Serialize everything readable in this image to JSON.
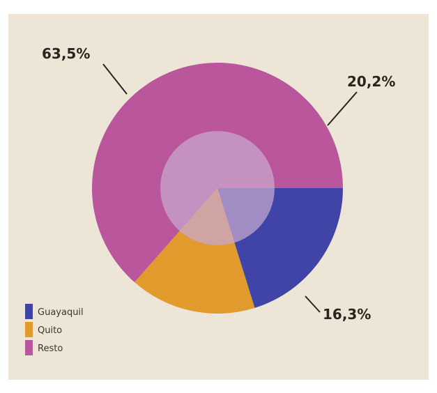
{
  "chart_data": {
    "type": "pie",
    "variant": "donut",
    "title": "",
    "categories": [
      "Guayaquil",
      "Quito",
      "Resto"
    ],
    "values": [
      20.2,
      16.3,
      63.5
    ],
    "labels": [
      "20,2%",
      "16,3%",
      "63,5%"
    ],
    "unit": "%",
    "start_angle_deg": 0,
    "direction": "clockwise",
    "colors": [
      "#3f44a6",
      "#e19b2c",
      "#b9569c"
    ],
    "center_disc_color": "#c9a7d0",
    "background_color": "#ede6d6",
    "legend": {
      "position": "bottom-left",
      "entries": [
        {
          "label": "Guayaquil",
          "color": "#3f44a6"
        },
        {
          "label": "Quito",
          "color": "#e19b2c"
        },
        {
          "label": "Resto",
          "color": "#b9569c"
        }
      ]
    }
  }
}
